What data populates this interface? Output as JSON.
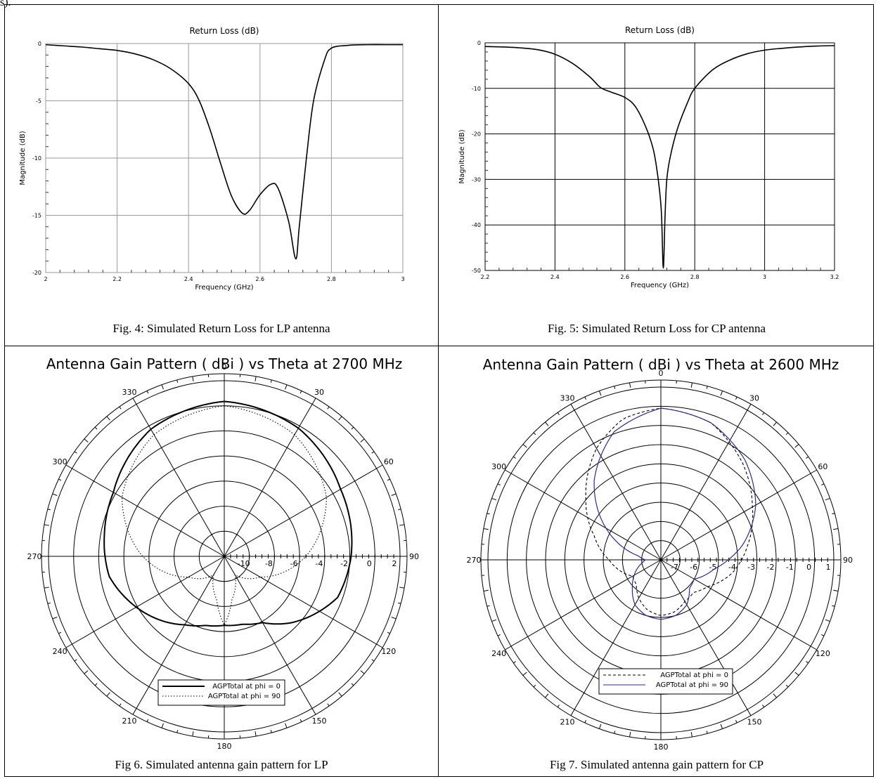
{
  "page": {
    "top_fragment": "s)."
  },
  "captions": {
    "fig4": "Fig. 4: Simulated Return Loss for LP antenna",
    "fig5": "Fig. 5: Simulated Return Loss for CP antenna",
    "fig6": "Fig 6. Simulated antenna gain pattern for LP",
    "fig7": "Fig 7. Simulated antenna gain pattern for CP"
  },
  "chart_data": [
    {
      "id": "fig4",
      "type": "line",
      "title": "Return Loss (dB)",
      "xlabel": "Frequency (GHz)",
      "ylabel": "Magnitude (dB)",
      "xlim": [
        2,
        3
      ],
      "ylim": [
        -20,
        0
      ],
      "xticks": [
        2,
        2.2,
        2.4,
        2.6,
        2.8,
        3
      ],
      "xtick_labels": [
        "2",
        "2.2",
        "2.4",
        "2.6",
        "2.8",
        "3"
      ],
      "yticks": [
        0,
        -5,
        -10,
        -15,
        -20
      ],
      "ytick_labels": [
        "0",
        "-5",
        "-10",
        "-15",
        "-20"
      ],
      "grid": true,
      "series": [
        {
          "x": [
            2.0,
            2.05,
            2.1,
            2.15,
            2.2,
            2.25,
            2.3,
            2.35,
            2.4,
            2.43,
            2.46,
            2.49,
            2.52,
            2.55,
            2.57,
            2.6,
            2.63,
            2.65,
            2.68,
            2.7,
            2.71,
            2.73,
            2.75,
            2.78,
            2.8,
            2.85,
            2.9,
            2.95,
            3.0
          ],
          "y": [
            -0.1,
            -0.2,
            -0.3,
            -0.45,
            -0.6,
            -0.9,
            -1.4,
            -2.2,
            -3.5,
            -5.0,
            -7.5,
            -10.5,
            -13.3,
            -14.8,
            -14.6,
            -13.2,
            -12.3,
            -12.6,
            -15.5,
            -18.8,
            -16.0,
            -10.0,
            -5.0,
            -1.5,
            -0.4,
            -0.15,
            -0.1,
            -0.1,
            -0.1
          ]
        }
      ]
    },
    {
      "id": "fig5",
      "type": "line",
      "title": "Return Loss (dB)",
      "xlabel": "Frequency (GHz)",
      "ylabel": "Magnitude (dB)",
      "xlim": [
        2.2,
        3.2
      ],
      "ylim": [
        -50,
        0
      ],
      "xticks": [
        2.2,
        2.4,
        2.6,
        2.8,
        3,
        3.2
      ],
      "xtick_labels": [
        "2.2",
        "2.4",
        "2.6",
        "2.8",
        "3",
        "3.2"
      ],
      "yticks": [
        0,
        -10,
        -20,
        -30,
        -40,
        -50
      ],
      "ytick_labels": [
        "0",
        "-10",
        "-20",
        "-30",
        "-40",
        "-50"
      ],
      "grid": true,
      "series": [
        {
          "x": [
            2.2,
            2.25,
            2.3,
            2.35,
            2.4,
            2.45,
            2.5,
            2.53,
            2.56,
            2.6,
            2.63,
            2.66,
            2.68,
            2.69,
            2.7,
            2.705,
            2.71,
            2.715,
            2.72,
            2.73,
            2.75,
            2.78,
            2.8,
            2.85,
            2.9,
            2.95,
            3.0,
            3.05,
            3.1,
            3.15,
            3.2
          ],
          "y": [
            -0.8,
            -0.9,
            -1.1,
            -1.5,
            -2.5,
            -4.5,
            -7.5,
            -9.8,
            -10.8,
            -12.0,
            -14.0,
            -18.5,
            -23.0,
            -27.0,
            -33.0,
            -38.0,
            -49.5,
            -38.0,
            -30.0,
            -25.0,
            -19.0,
            -13.0,
            -10.0,
            -6.0,
            -3.8,
            -2.4,
            -1.6,
            -1.2,
            -0.9,
            -0.7,
            -0.6
          ]
        }
      ]
    },
    {
      "id": "fig6",
      "type": "polar",
      "title": "Antenna Gain Pattern ( dBi )  vs Theta at 2700 MHz",
      "angle_labels": [
        "0",
        "30",
        "60",
        "90",
        "120",
        "150",
        "180",
        "210",
        "240",
        "270",
        "300",
        "330"
      ],
      "radial_range": [
        -12,
        2
      ],
      "radial_labels": [
        "-10",
        "-8",
        "-6",
        "-4",
        "-2",
        "0",
        "2"
      ],
      "radial_values": [
        -10,
        -8,
        -6,
        -4,
        -2,
        0,
        2
      ],
      "rings_values": [
        -10,
        -8,
        -6,
        -4,
        -2,
        0,
        2
      ],
      "legend": {
        "position": "bottom-center",
        "entries": [
          "AGPTotal at phi = 0",
          "AGPTotal at phi = 90"
        ]
      },
      "series": [
        {
          "name": "AGPTotal at phi = 0",
          "style": "solid",
          "theta": [
            0,
            30,
            60,
            90,
            110,
            135,
            150,
            165,
            180,
            195,
            210,
            240,
            260,
            280,
            300,
            330
          ],
          "gain": [
            0.35,
            -0.2,
            -1.3,
            -1.9,
            -2.4,
            -4.5,
            -5.9,
            -6.4,
            -6.5,
            -6.3,
            -5.7,
            -3.9,
            -2.7,
            -2.3,
            -1.8,
            -0.3
          ]
        },
        {
          "name": "AGPTotal at phi = 90",
          "style": "dotted",
          "theta": [
            0,
            30,
            60,
            90,
            120,
            150,
            170,
            180,
            190,
            210,
            240,
            270,
            300,
            330
          ],
          "gain": [
            0.0,
            -0.8,
            -2.6,
            -5.5,
            -8.7,
            -10.3,
            -8.5,
            -6.5,
            -8.5,
            -10.3,
            -8.7,
            -5.5,
            -2.6,
            -0.8
          ]
        }
      ]
    },
    {
      "id": "fig7",
      "type": "polar",
      "title": "Antenna Gain Pattern ( dBi )  vs Theta at 2600 MHz",
      "angle_labels": [
        "0",
        "30",
        "60",
        "90",
        "120",
        "150",
        "180",
        "210",
        "240",
        "270",
        "300",
        "330"
      ],
      "radial_range": [
        -8,
        1
      ],
      "radial_labels": [
        "-7",
        "-6",
        "-5",
        "-4",
        "-3",
        "-2",
        "-1",
        "0",
        "1"
      ],
      "radial_values": [
        -7,
        -6,
        -5,
        -4,
        -3,
        -2,
        -1,
        0,
        1
      ],
      "rings_values": [
        -7,
        -6,
        -5,
        -4,
        -3,
        -2,
        -1,
        0,
        1
      ],
      "legend": {
        "position": "bottom-center",
        "entries": [
          "AGPTotal at phi = 0",
          "AGPTotal at phi = 90"
        ]
      },
      "series": [
        {
          "name": "AGPTotal at phi = 0",
          "style": "dashed",
          "color": "#000000",
          "theta": [
            0,
            20,
            40,
            60,
            80,
            100,
            120,
            135,
            150,
            165,
            180,
            195,
            210,
            225,
            240,
            255,
            270,
            290,
            310,
            330,
            345
          ],
          "gain": [
            -0.1,
            -0.4,
            -1.4,
            -2.5,
            -3.4,
            -4.2,
            -5.2,
            -5.6,
            -5.5,
            -5.2,
            -5.1,
            -5.3,
            -5.7,
            -6.2,
            -6.3,
            -5.8,
            -5.3,
            -4.3,
            -2.9,
            -1.3,
            -0.4
          ]
        },
        {
          "name": "AGPTotal at phi = 90",
          "style": "solid",
          "color": "#2b2b9a",
          "theta": [
            0,
            20,
            40,
            60,
            80,
            90,
            100,
            120,
            135,
            150,
            165,
            180,
            195,
            210,
            225,
            240,
            260,
            270,
            280,
            300,
            320,
            340
          ],
          "gain": [
            -0.1,
            -0.4,
            -1.2,
            -2.3,
            -3.7,
            -4.5,
            -5.2,
            -6.0,
            -5.9,
            -5.3,
            -5.0,
            -4.9,
            -5.0,
            -5.3,
            -5.9,
            -6.4,
            -7.0,
            -7.2,
            -6.8,
            -4.7,
            -2.6,
            -0.9
          ]
        }
      ]
    }
  ]
}
